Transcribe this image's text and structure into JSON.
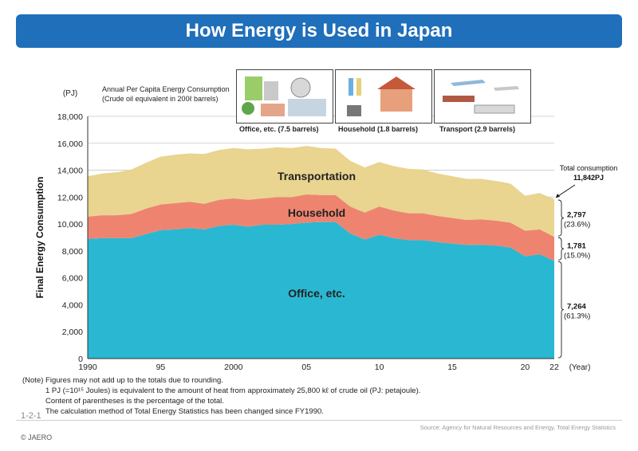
{
  "page": {
    "title": "How Energy is Used in Japan",
    "figure_number": "1-2-1",
    "copyright": "© JAERO",
    "source": "Source: Agency for Natural Resources and Energy, Total Energy Statistics"
  },
  "per_capita": {
    "title_line1": "Annual Per Capita Energy Consumption",
    "title_line2": "(Crude oil equivalent in 200ℓ barrels)",
    "items": [
      {
        "label": "Office, etc. (7.5 barrels)",
        "icon": "office-illustration"
      },
      {
        "label": "Household (1.8 barrels)",
        "icon": "household-illustration"
      },
      {
        "label": "Transport (2.9 barrels)",
        "icon": "transport-illustration"
      }
    ]
  },
  "notes": [
    "(Note) Figures may not add up to the totals due to rounding.",
    "1 PJ (=10¹⁵ Joules) is equivalent to the amount of heat from approximately 25,800 kℓ of crude oil (PJ: petajoule).",
    "Content of parentheses is the percentage of the total.",
    "The calculation method of Total Energy Statistics has been changed since FY1990."
  ],
  "chart_data": {
    "type": "area",
    "stacked": true,
    "ylabel": "Final Energy Consumption",
    "yunit": "(PJ)",
    "xunit": "(Year)",
    "ylim": [
      0,
      18000
    ],
    "yticks": [
      0,
      2000,
      4000,
      6000,
      8000,
      10000,
      12000,
      14000,
      16000,
      18000
    ],
    "ytick_labels": [
      "0",
      "2,000",
      "4,000",
      "6,000",
      "8,000",
      "10,000",
      "12,000",
      "14,000",
      "16,000",
      "18,000"
    ],
    "xlim": [
      1990,
      2022
    ],
    "xticks": [
      1990,
      1995,
      2000,
      2005,
      2010,
      2015,
      2020,
      2022
    ],
    "xtick_labels": [
      "1990",
      "95",
      "2000",
      "05",
      "10",
      "15",
      "20",
      "22"
    ],
    "grid": true,
    "x": [
      1990,
      1991,
      1992,
      1993,
      1994,
      1995,
      1996,
      1997,
      1998,
      1999,
      2000,
      2001,
      2002,
      2003,
      2004,
      2005,
      2006,
      2007,
      2008,
      2009,
      2010,
      2011,
      2012,
      2013,
      2014,
      2015,
      2016,
      2017,
      2018,
      2019,
      2020,
      2021,
      2022
    ],
    "series": [
      {
        "name": "Office, etc.",
        "color": "#2ab7d2",
        "values": [
          8900,
          8950,
          8950,
          8950,
          9250,
          9550,
          9600,
          9700,
          9600,
          9850,
          9950,
          9800,
          9950,
          9950,
          10000,
          10100,
          10150,
          10150,
          9300,
          8850,
          9200,
          8950,
          8800,
          8800,
          8650,
          8550,
          8450,
          8450,
          8400,
          8250,
          7600,
          7750,
          7264
        ]
      },
      {
        "name": "Household",
        "color": "#ee8470",
        "values": [
          1650,
          1700,
          1700,
          1800,
          1900,
          1900,
          1950,
          1950,
          1900,
          1950,
          1950,
          2000,
          1950,
          2050,
          2000,
          2100,
          2000,
          2000,
          2000,
          2000,
          2100,
          2050,
          2000,
          2000,
          1950,
          1900,
          1850,
          1900,
          1850,
          1850,
          1900,
          1850,
          1781
        ]
      },
      {
        "name": "Transportation",
        "color": "#e9d490",
        "values": [
          3000,
          3100,
          3200,
          3300,
          3400,
          3550,
          3600,
          3600,
          3700,
          3700,
          3750,
          3750,
          3700,
          3700,
          3650,
          3600,
          3500,
          3450,
          3400,
          3350,
          3300,
          3300,
          3300,
          3250,
          3150,
          3100,
          3050,
          3000,
          2950,
          2900,
          2600,
          2700,
          2797
        ]
      }
    ],
    "area_labels": [
      "Transportation",
      "Household",
      "Office, etc."
    ],
    "annotations": {
      "total_label": "Total consumption",
      "total_value": "11,842PJ",
      "office": {
        "value": "7,264",
        "pct": "(61.3%)"
      },
      "household": {
        "value": "1,781",
        "pct": "(15.0%)"
      },
      "transport": {
        "value": "2,797",
        "pct": "(23.6%)"
      }
    }
  }
}
